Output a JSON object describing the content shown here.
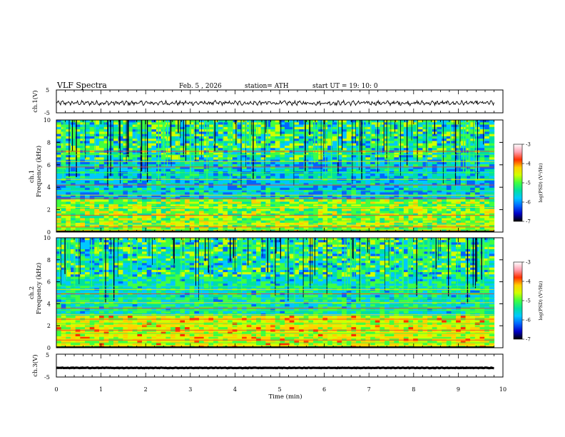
{
  "header": {
    "title": "VLF Spectra",
    "date": "Feb. 5 , 2026",
    "station": "station= ATH",
    "start": "start UT =  19: 10: 0"
  },
  "chart_data": [
    {
      "type": "line",
      "panel": "ch1-waveform",
      "ylabel": "ch.1(V)",
      "yticks": [
        "5",
        "-5"
      ],
      "ylim": [
        -5,
        5
      ],
      "xlim": [
        0,
        10
      ],
      "trace_end_min": 9.8,
      "trace_level_v": -0.7,
      "trace_amplitude_v": 1.2,
      "color": "#000000"
    },
    {
      "type": "heatmap",
      "panel": "ch1-spectrogram",
      "title": "ch.1",
      "ylabel": "Frequency (kHz)",
      "yticks": [
        "0",
        "2",
        "4",
        "6",
        "8",
        "10"
      ],
      "ylim": [
        0,
        10
      ],
      "xlim": [
        0,
        10
      ],
      "data_end_min": 9.8,
      "colorbar": {
        "label": "log(PSD) (V²/Hz)",
        "ticks": [
          "-3",
          "-4",
          "-5",
          "-6",
          "-7"
        ],
        "range": [
          -7,
          -3
        ],
        "colors": [
          "#000000",
          "#0000c8",
          "#0064ff",
          "#00c8ff",
          "#00e0a0",
          "#40ff40",
          "#d0ff00",
          "#ffd000",
          "#ff3000",
          "#ffa0b0",
          "#ffffff"
        ]
      },
      "lines_khz": [
        0.1,
        0.25,
        0.45,
        0.7,
        1.0,
        1.5,
        2.2,
        2.5,
        3.0,
        3.3,
        3.7,
        4.2,
        4.7,
        5.3,
        5.8,
        6.3,
        6.9,
        7.2
      ]
    },
    {
      "type": "heatmap",
      "panel": "ch2-spectrogram",
      "title": "ch.2",
      "ylabel": "Frequency (kHz)",
      "yticks": [
        "0",
        "2",
        "4",
        "6",
        "8",
        "10"
      ],
      "ylim": [
        0,
        10
      ],
      "xlim": [
        0,
        10
      ],
      "data_end_min": 9.8,
      "colorbar": {
        "label": "log(PSD) (V²/Hz)",
        "ticks": [
          "-3",
          "-4",
          "-5",
          "-6",
          "-7"
        ],
        "range": [
          -7,
          -3
        ],
        "colors": [
          "#000000",
          "#0000c8",
          "#0064ff",
          "#00c8ff",
          "#00e0a0",
          "#40ff40",
          "#d0ff00",
          "#ffd000",
          "#ff3000",
          "#ffa0b0",
          "#ffffff"
        ]
      },
      "lines_khz": [
        0.2,
        0.45,
        0.7,
        1.0,
        1.3,
        1.6,
        2.0,
        2.2,
        2.6,
        3.0,
        3.4,
        3.6,
        4.1,
        4.5,
        4.9,
        5.3,
        5.6
      ]
    },
    {
      "type": "line",
      "panel": "ch3-waveform",
      "ylabel": "ch.3(V)",
      "yticks": [
        "5",
        "-5"
      ],
      "ylim": [
        -5,
        5
      ],
      "xlim": [
        0,
        10
      ],
      "trace_end_min": 9.8,
      "trace_level_v": -1.0,
      "trace_amplitude_v": 0.15,
      "color": "#000000",
      "xlabel": "Time (min)",
      "xticks": [
        "0",
        "1",
        "2",
        "3",
        "4",
        "5",
        "6",
        "7",
        "8",
        "9",
        "10"
      ]
    }
  ]
}
